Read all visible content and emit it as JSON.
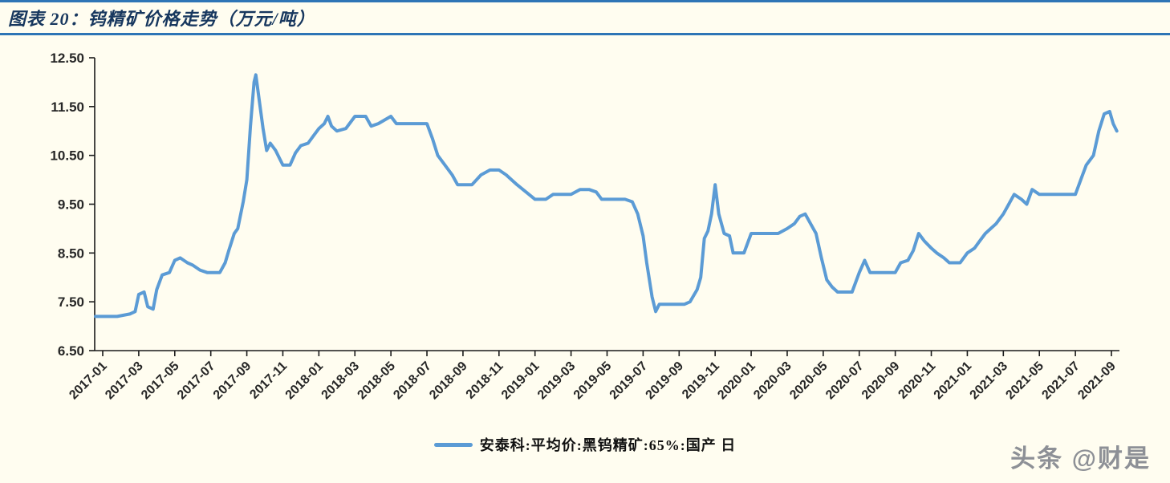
{
  "figure": {
    "title": "图表 20：钨精矿价格走势（万元/吨）"
  },
  "watermark": "头条 @财是",
  "colors": {
    "background": "#FFFDF0",
    "rule_blue": "#2E75B6",
    "title_text": "#17375E",
    "series_line": "#5B9BD5",
    "axis": "#1a1a1a",
    "tick_text": "#262626"
  },
  "chart_data": {
    "type": "line",
    "title": "钨精矿价格走势（万元/吨）",
    "ylabel": "",
    "xlabel": "",
    "ylim": [
      6.5,
      12.5
    ],
    "ytick_labels": [
      "6.50",
      "7.50",
      "8.50",
      "9.50",
      "10.50",
      "11.50",
      "12.50"
    ],
    "ytick_values": [
      6.5,
      7.5,
      8.5,
      9.5,
      10.5,
      11.5,
      12.5
    ],
    "xtick_labels": [
      "2017-01",
      "2017-03",
      "2017-05",
      "2017-07",
      "2017-09",
      "2017-11",
      "2018-01",
      "2018-03",
      "2018-05",
      "2018-07",
      "2018-09",
      "2018-11",
      "2019-01",
      "2019-03",
      "2019-05",
      "2019-07",
      "2019-09",
      "2019-11",
      "2020-01",
      "2020-03",
      "2020-05",
      "2020-07",
      "2020-09",
      "2020-11",
      "2021-01",
      "2021-03",
      "2021-05",
      "2021-07",
      "2021-09"
    ],
    "xtick_month_index": [
      0,
      2,
      4,
      6,
      8,
      10,
      12,
      14,
      16,
      18,
      20,
      22,
      24,
      26,
      28,
      30,
      32,
      34,
      36,
      38,
      40,
      42,
      44,
      46,
      48,
      50,
      52,
      54,
      56
    ],
    "grid": false,
    "legend_position": "bottom-center",
    "series": [
      {
        "name": "安泰科:平均价:黑钨精矿:65%:国产  日",
        "color": "#5B9BD5",
        "points": [
          [
            -0.4,
            7.2
          ],
          [
            0.8,
            7.2
          ],
          [
            1.5,
            7.25
          ],
          [
            1.8,
            7.3
          ],
          [
            2.0,
            7.65
          ],
          [
            2.3,
            7.7
          ],
          [
            2.5,
            7.4
          ],
          [
            2.8,
            7.35
          ],
          [
            3.0,
            7.75
          ],
          [
            3.3,
            8.05
          ],
          [
            3.7,
            8.1
          ],
          [
            4.0,
            8.35
          ],
          [
            4.3,
            8.4
          ],
          [
            4.7,
            8.3
          ],
          [
            5.0,
            8.25
          ],
          [
            5.4,
            8.15
          ],
          [
            5.8,
            8.1
          ],
          [
            6.5,
            8.1
          ],
          [
            6.8,
            8.3
          ],
          [
            7.0,
            8.55
          ],
          [
            7.3,
            8.9
          ],
          [
            7.5,
            9.0
          ],
          [
            7.8,
            9.55
          ],
          [
            8.0,
            10.0
          ],
          [
            8.2,
            11.1
          ],
          [
            8.4,
            12.0
          ],
          [
            8.5,
            12.15
          ],
          [
            8.7,
            11.6
          ],
          [
            8.9,
            11.05
          ],
          [
            9.1,
            10.6
          ],
          [
            9.3,
            10.75
          ],
          [
            9.6,
            10.6
          ],
          [
            9.8,
            10.45
          ],
          [
            10.0,
            10.3
          ],
          [
            10.4,
            10.3
          ],
          [
            10.7,
            10.55
          ],
          [
            11.0,
            10.7
          ],
          [
            11.4,
            10.75
          ],
          [
            11.7,
            10.9
          ],
          [
            12.0,
            11.05
          ],
          [
            12.3,
            11.15
          ],
          [
            12.5,
            11.3
          ],
          [
            12.7,
            11.1
          ],
          [
            13.0,
            11.0
          ],
          [
            13.5,
            11.05
          ],
          [
            14.0,
            11.3
          ],
          [
            14.6,
            11.3
          ],
          [
            14.9,
            11.1
          ],
          [
            15.3,
            11.15
          ],
          [
            16.0,
            11.3
          ],
          [
            16.3,
            11.15
          ],
          [
            17.0,
            11.15
          ],
          [
            18.0,
            11.15
          ],
          [
            18.3,
            10.85
          ],
          [
            18.6,
            10.5
          ],
          [
            19.0,
            10.3
          ],
          [
            19.4,
            10.1
          ],
          [
            19.7,
            9.9
          ],
          [
            20.5,
            9.9
          ],
          [
            21.0,
            10.1
          ],
          [
            21.5,
            10.2
          ],
          [
            22.0,
            10.2
          ],
          [
            22.4,
            10.1
          ],
          [
            22.7,
            10.0
          ],
          [
            23.0,
            9.9
          ],
          [
            23.5,
            9.75
          ],
          [
            24.0,
            9.6
          ],
          [
            24.6,
            9.6
          ],
          [
            25.0,
            9.7
          ],
          [
            26.0,
            9.7
          ],
          [
            26.5,
            9.8
          ],
          [
            27.0,
            9.8
          ],
          [
            27.4,
            9.75
          ],
          [
            27.7,
            9.6
          ],
          [
            28.0,
            9.6
          ],
          [
            29.0,
            9.6
          ],
          [
            29.4,
            9.55
          ],
          [
            29.7,
            9.3
          ],
          [
            30.0,
            8.85
          ],
          [
            30.2,
            8.3
          ],
          [
            30.5,
            7.6
          ],
          [
            30.7,
            7.3
          ],
          [
            30.9,
            7.45
          ],
          [
            31.5,
            7.45
          ],
          [
            32.3,
            7.45
          ],
          [
            32.6,
            7.5
          ],
          [
            33.0,
            7.75
          ],
          [
            33.2,
            8.0
          ],
          [
            33.4,
            8.8
          ],
          [
            33.6,
            8.95
          ],
          [
            33.8,
            9.3
          ],
          [
            34.0,
            9.9
          ],
          [
            34.2,
            9.3
          ],
          [
            34.5,
            8.9
          ],
          [
            34.8,
            8.85
          ],
          [
            35.0,
            8.5
          ],
          [
            35.6,
            8.5
          ],
          [
            36.0,
            8.9
          ],
          [
            37.5,
            8.9
          ],
          [
            38.0,
            9.0
          ],
          [
            38.4,
            9.1
          ],
          [
            38.7,
            9.25
          ],
          [
            39.0,
            9.3
          ],
          [
            39.3,
            9.1
          ],
          [
            39.6,
            8.9
          ],
          [
            39.9,
            8.4
          ],
          [
            40.2,
            7.95
          ],
          [
            40.5,
            7.8
          ],
          [
            40.8,
            7.7
          ],
          [
            41.6,
            7.7
          ],
          [
            42.0,
            8.1
          ],
          [
            42.3,
            8.35
          ],
          [
            42.6,
            8.1
          ],
          [
            43.0,
            8.1
          ],
          [
            44.0,
            8.1
          ],
          [
            44.3,
            8.3
          ],
          [
            44.7,
            8.35
          ],
          [
            45.0,
            8.55
          ],
          [
            45.3,
            8.9
          ],
          [
            45.6,
            8.75
          ],
          [
            46.0,
            8.6
          ],
          [
            46.3,
            8.5
          ],
          [
            46.7,
            8.4
          ],
          [
            47.0,
            8.3
          ],
          [
            47.6,
            8.3
          ],
          [
            48.0,
            8.5
          ],
          [
            48.4,
            8.6
          ],
          [
            48.7,
            8.75
          ],
          [
            49.0,
            8.9
          ],
          [
            49.3,
            9.0
          ],
          [
            49.6,
            9.1
          ],
          [
            50.0,
            9.3
          ],
          [
            50.3,
            9.5
          ],
          [
            50.6,
            9.7
          ],
          [
            51.0,
            9.6
          ],
          [
            51.3,
            9.5
          ],
          [
            51.6,
            9.8
          ],
          [
            52.0,
            9.7
          ],
          [
            53.0,
            9.7
          ],
          [
            54.0,
            9.7
          ],
          [
            54.3,
            10.0
          ],
          [
            54.6,
            10.3
          ],
          [
            55.0,
            10.5
          ],
          [
            55.3,
            11.0
          ],
          [
            55.6,
            11.35
          ],
          [
            55.9,
            11.4
          ],
          [
            56.1,
            11.15
          ],
          [
            56.3,
            11.0
          ]
        ]
      }
    ]
  }
}
